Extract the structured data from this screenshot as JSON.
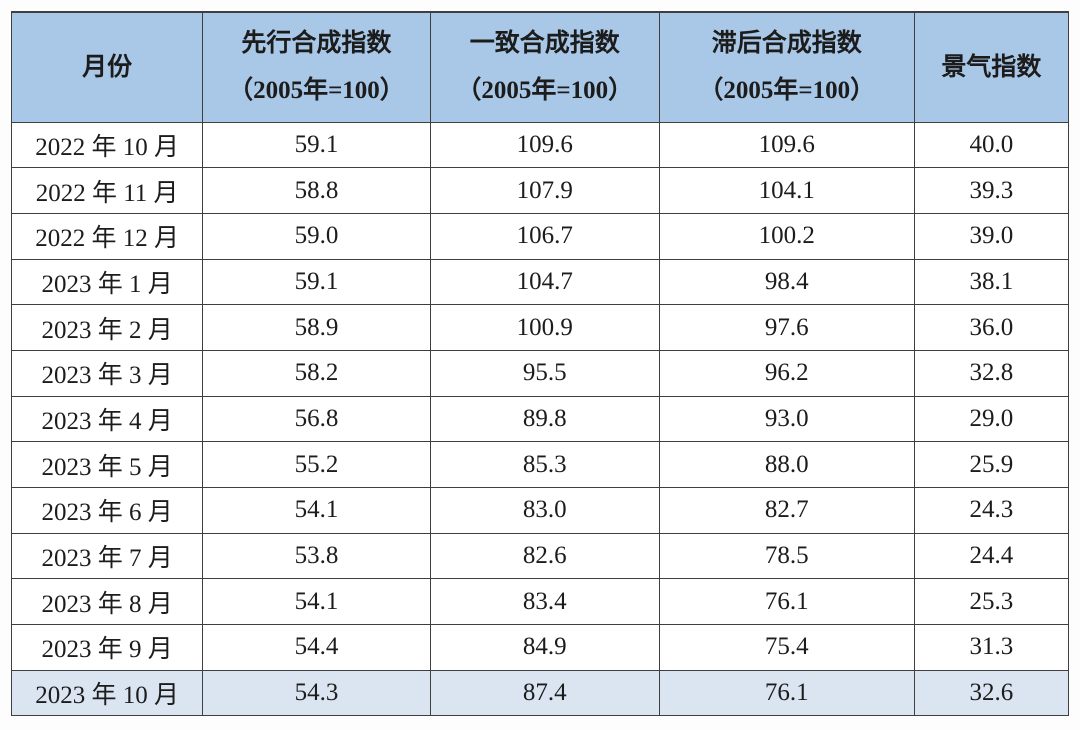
{
  "table": {
    "columns": [
      {
        "title": "月份",
        "subtitle": ""
      },
      {
        "title": "先行合成指数",
        "subtitle": "（2005年=100）"
      },
      {
        "title": "一致合成指数",
        "subtitle": "（2005年=100）"
      },
      {
        "title": "滞后合成指数",
        "subtitle": "（2005年=100）"
      },
      {
        "title": "景气指数",
        "subtitle": ""
      }
    ],
    "rows": [
      {
        "month": "2022 年 10 月",
        "leading": "59.1",
        "coincident": "109.6",
        "lagging": "109.6",
        "prosperity": "40.0",
        "highlight": false
      },
      {
        "month": "2022 年 11 月",
        "leading": "58.8",
        "coincident": "107.9",
        "lagging": "104.1",
        "prosperity": "39.3",
        "highlight": false
      },
      {
        "month": "2022 年 12 月",
        "leading": "59.0",
        "coincident": "106.7",
        "lagging": "100.2",
        "prosperity": "39.0",
        "highlight": false
      },
      {
        "month": "2023 年 1 月",
        "leading": "59.1",
        "coincident": "104.7",
        "lagging": "98.4",
        "prosperity": "38.1",
        "highlight": false
      },
      {
        "month": "2023 年 2 月",
        "leading": "58.9",
        "coincident": "100.9",
        "lagging": "97.6",
        "prosperity": "36.0",
        "highlight": false
      },
      {
        "month": "2023 年 3 月",
        "leading": "58.2",
        "coincident": "95.5",
        "lagging": "96.2",
        "prosperity": "32.8",
        "highlight": false
      },
      {
        "month": "2023 年 4 月",
        "leading": "56.8",
        "coincident": "89.8",
        "lagging": "93.0",
        "prosperity": "29.0",
        "highlight": false
      },
      {
        "month": "2023 年 5 月",
        "leading": "55.2",
        "coincident": "85.3",
        "lagging": "88.0",
        "prosperity": "25.9",
        "highlight": false
      },
      {
        "month": "2023 年 6 月",
        "leading": "54.1",
        "coincident": "83.0",
        "lagging": "82.7",
        "prosperity": "24.3",
        "highlight": false
      },
      {
        "month": "2023 年 7 月",
        "leading": "53.8",
        "coincident": "82.6",
        "lagging": "78.5",
        "prosperity": "24.4",
        "highlight": false
      },
      {
        "month": "2023 年 8 月",
        "leading": "54.1",
        "coincident": "83.4",
        "lagging": "76.1",
        "prosperity": "25.3",
        "highlight": false
      },
      {
        "month": "2023 年 9 月",
        "leading": "54.4",
        "coincident": "84.9",
        "lagging": "75.4",
        "prosperity": "31.3",
        "highlight": false
      },
      {
        "month": "2023 年 10 月",
        "leading": "54.3",
        "coincident": "87.4",
        "lagging": "76.1",
        "prosperity": "32.6",
        "highlight": true
      }
    ]
  },
  "colors": {
    "header_bg": "#a9c7e6",
    "highlight_bg": "#dbe5f1",
    "border": "#3f3f3f",
    "text": "#1c1c1c",
    "page_bg": "#fdfdfd"
  },
  "chart_data": {
    "type": "table",
    "columns": [
      "月份",
      "先行合成指数（2005年=100）",
      "一致合成指数（2005年=100）",
      "滞后合成指数（2005年=100）",
      "景气指数"
    ],
    "rows": [
      [
        "2022年10月",
        59.1,
        109.6,
        109.6,
        40.0
      ],
      [
        "2022年11月",
        58.8,
        107.9,
        104.1,
        39.3
      ],
      [
        "2022年12月",
        59.0,
        106.7,
        100.2,
        39.0
      ],
      [
        "2023年1月",
        59.1,
        104.7,
        98.4,
        38.1
      ],
      [
        "2023年2月",
        58.9,
        100.9,
        97.6,
        36.0
      ],
      [
        "2023年3月",
        58.2,
        95.5,
        96.2,
        32.8
      ],
      [
        "2023年4月",
        56.8,
        89.8,
        93.0,
        29.0
      ],
      [
        "2023年5月",
        55.2,
        85.3,
        88.0,
        25.9
      ],
      [
        "2023年6月",
        54.1,
        83.0,
        82.7,
        24.3
      ],
      [
        "2023年7月",
        53.8,
        82.6,
        78.5,
        24.4
      ],
      [
        "2023年8月",
        54.1,
        83.4,
        76.1,
        25.3
      ],
      [
        "2023年9月",
        54.4,
        84.9,
        75.4,
        31.3
      ],
      [
        "2023年10月",
        54.3,
        87.4,
        76.1,
        32.6
      ]
    ],
    "highlighted_row": "2023年10月",
    "series": [
      {
        "name": "先行合成指数（2005年=100）",
        "values": [
          59.1,
          58.8,
          59.0,
          59.1,
          58.9,
          58.2,
          56.8,
          55.2,
          54.1,
          53.8,
          54.1,
          54.4,
          54.3
        ]
      },
      {
        "name": "一致合成指数（2005年=100）",
        "values": [
          109.6,
          107.9,
          106.7,
          104.7,
          100.9,
          95.5,
          89.8,
          85.3,
          83.0,
          82.6,
          83.4,
          84.9,
          87.4
        ]
      },
      {
        "name": "滞后合成指数（2005年=100）",
        "values": [
          109.6,
          104.1,
          100.2,
          98.4,
          97.6,
          96.2,
          93.0,
          88.0,
          82.7,
          78.5,
          76.1,
          75.4,
          76.1
        ]
      },
      {
        "name": "景气指数",
        "values": [
          40.0,
          39.3,
          39.0,
          38.1,
          36.0,
          32.8,
          29.0,
          25.9,
          24.3,
          24.4,
          25.3,
          31.3,
          32.6
        ]
      }
    ],
    "categories": [
      "2022年10月",
      "2022年11月",
      "2022年12月",
      "2023年1月",
      "2023年2月",
      "2023年3月",
      "2023年4月",
      "2023年5月",
      "2023年6月",
      "2023年7月",
      "2023年8月",
      "2023年9月",
      "2023年10月"
    ]
  }
}
